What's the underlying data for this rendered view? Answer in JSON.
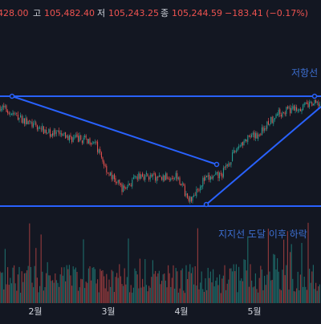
{
  "ohlc_header": {
    "open_text": "428.00",
    "high_label": "고",
    "high_value": "105,482.40",
    "low_label": "저",
    "low_value": "105,243.25",
    "close_label": "종",
    "close_value": "105,244.59",
    "change_text": "−183.41 (−0.17%)"
  },
  "annotations": {
    "resistance": "저항선",
    "support_break": "지지선 도달 이후 하락"
  },
  "colors": {
    "background": "#131722",
    "up": "#26a69a",
    "down": "#ef5350",
    "trendline": "#2962ff",
    "text": "#d1d4dc",
    "annotation": "#3d6fd1"
  },
  "chart_data": {
    "type": "candlestick",
    "title": "",
    "x_ticks": [
      "2월",
      "3월",
      "4월",
      "5월"
    ],
    "price_band": {
      "upper": 108000,
      "lower": 76600
    },
    "levels": [
      {
        "name": "저항선",
        "price": 108000
      },
      {
        "name": "지지선",
        "price": 76600
      }
    ],
    "price_path": [
      {
        "month": 1.0,
        "price": 102000
      },
      {
        "month": 1.3,
        "price": 107500
      },
      {
        "month": 1.6,
        "price": 104000
      },
      {
        "month": 1.9,
        "price": 100500
      },
      {
        "month": 2.2,
        "price": 97500
      },
      {
        "month": 2.5,
        "price": 96000
      },
      {
        "month": 2.8,
        "price": 95300
      },
      {
        "month": 3.0,
        "price": 86000
      },
      {
        "month": 3.2,
        "price": 81500
      },
      {
        "month": 3.45,
        "price": 85500
      },
      {
        "month": 3.7,
        "price": 84500
      },
      {
        "month": 3.95,
        "price": 85500
      },
      {
        "month": 4.1,
        "price": 78000
      },
      {
        "month": 4.3,
        "price": 84000
      },
      {
        "month": 4.55,
        "price": 85500
      },
      {
        "month": 4.8,
        "price": 94500
      },
      {
        "month": 5.05,
        "price": 97000
      },
      {
        "month": 5.3,
        "price": 103000
      },
      {
        "month": 5.55,
        "price": 104500
      },
      {
        "month": 5.8,
        "price": 105800
      }
    ]
  }
}
